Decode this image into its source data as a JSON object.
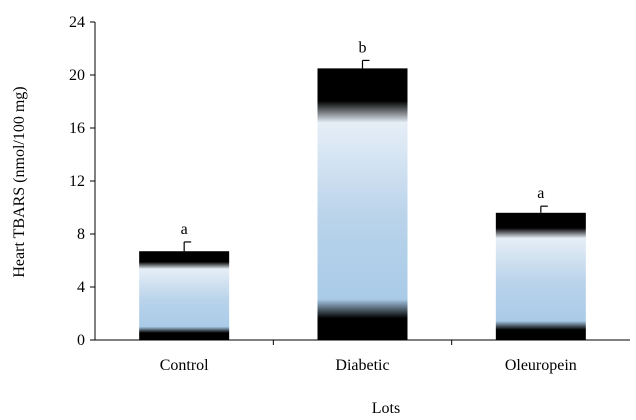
{
  "chart_data": {
    "type": "bar",
    "categories": [
      "Control",
      "Diabetic",
      "Oleuropein"
    ],
    "values": [
      6.7,
      20.5,
      9.6
    ],
    "errors": [
      0.7,
      0.6,
      0.5
    ],
    "significance_labels": [
      "a",
      "b",
      "a"
    ],
    "xlabel": "Lots",
    "ylabel": "Heart TBARS (nmol/100 mg)",
    "ylim": [
      0,
      24
    ],
    "yticks": [
      0,
      4,
      8,
      12,
      16,
      20,
      24
    ],
    "grid": false,
    "legend": "none"
  }
}
